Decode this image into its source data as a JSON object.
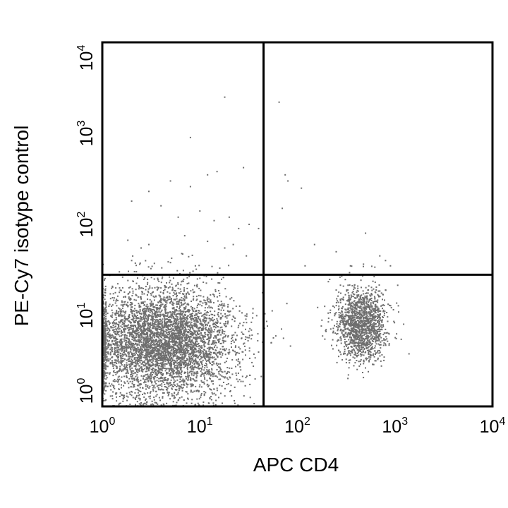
{
  "chart_data": {
    "type": "scatter",
    "title": "",
    "xlabel": "APC CD4",
    "ylabel": "PE-Cy7 isotype control",
    "x_scale": "log",
    "y_scale": "log",
    "xlim": [
      1,
      10000
    ],
    "ylim": [
      1,
      10000
    ],
    "x_ticks": [
      {
        "base": "10",
        "exp": "0",
        "value": 1
      },
      {
        "base": "10",
        "exp": "1",
        "value": 10
      },
      {
        "base": "10",
        "exp": "2",
        "value": 100
      },
      {
        "base": "10",
        "exp": "3",
        "value": 1000
      },
      {
        "base": "10",
        "exp": "4",
        "value": 10000
      }
    ],
    "y_ticks": [
      {
        "base": "10",
        "exp": "0",
        "value": 1
      },
      {
        "base": "10",
        "exp": "1",
        "value": 10
      },
      {
        "base": "10",
        "exp": "2",
        "value": 100
      },
      {
        "base": "10",
        "exp": "3",
        "value": 1000
      },
      {
        "base": "10",
        "exp": "4",
        "value": 10000
      }
    ],
    "quadrant_gates": {
      "x": 45,
      "y": 28
    },
    "grid": false,
    "point_color": "#6e6e6e",
    "populations": [
      {
        "center": [
          4,
          5
        ],
        "spread_log": [
          0.38,
          0.3
        ],
        "count": 5200
      },
      {
        "center": [
          450,
          8
        ],
        "spread_log": [
          0.13,
          0.2
        ],
        "count": 1500
      }
    ],
    "sparse_points": [
      [
        18,
        2500
      ],
      [
        65,
        2200
      ],
      [
        8,
        900
      ],
      [
        12,
        350
      ],
      [
        15,
        380
      ],
      [
        28,
        420
      ],
      [
        3,
        230
      ],
      [
        5,
        300
      ],
      [
        8,
        260
      ],
      [
        2,
        180
      ],
      [
        4,
        160
      ],
      [
        6,
        120
      ],
      [
        10,
        140
      ],
      [
        14,
        110
      ],
      [
        20,
        120
      ],
      [
        25,
        90
      ],
      [
        32,
        100
      ],
      [
        3,
        60
      ],
      [
        2.5,
        55
      ],
      [
        7,
        75
      ],
      [
        12,
        65
      ],
      [
        18,
        55
      ],
      [
        22,
        60
      ],
      [
        30,
        45
      ],
      [
        40,
        90
      ],
      [
        80,
        300
      ],
      [
        110,
        250
      ],
      [
        75,
        350
      ],
      [
        70,
        150
      ],
      [
        150,
        60
      ],
      [
        250,
        50
      ],
      [
        500,
        80
      ],
      [
        700,
        45
      ],
      [
        800,
        40
      ],
      [
        350,
        35
      ],
      [
        900,
        35
      ],
      [
        2,
        40
      ],
      [
        5,
        38
      ],
      [
        9,
        35
      ],
      [
        16,
        33
      ],
      [
        120,
        35
      ]
    ]
  }
}
